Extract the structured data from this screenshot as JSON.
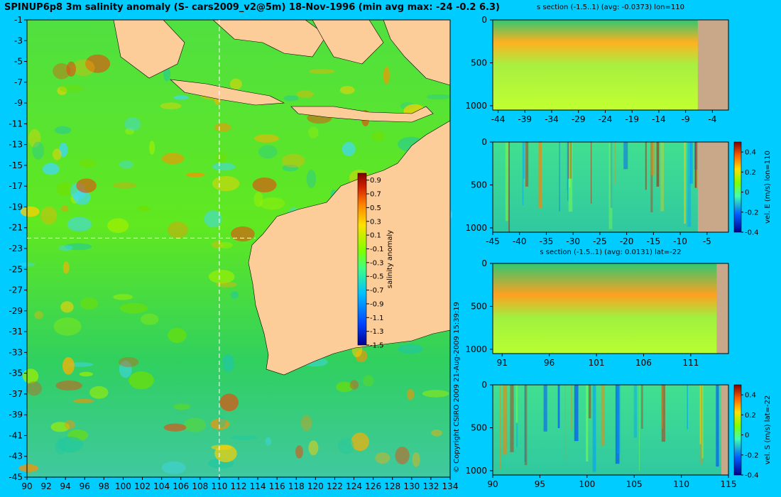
{
  "title": "SPINUP6p8 3m salinity anomaly (S- cars2009_v2@5m) 18-Nov-1996 (min avg max: -24 -0.2 6.3)",
  "copyright": "© Copyright CSIRO 2009   21-Aug-2009 15:39:19",
  "colors": {
    "background": "#00ccff",
    "land": "#fccc99",
    "section_land": "#c8a888"
  },
  "colormap": [
    "#00008f",
    "#0040ff",
    "#00c0ff",
    "#40ff80",
    "#80ff00",
    "#ffe000",
    "#ff8000",
    "#d02000",
    "#800000"
  ],
  "chart_data": [
    {
      "id": "map",
      "type": "heatmap",
      "title": "",
      "xlabel": "",
      "ylabel": "",
      "x_ticks": [
        "90",
        "92",
        "94",
        "96",
        "98",
        "100",
        "102",
        "104",
        "106",
        "108",
        "110",
        "112",
        "114",
        "116",
        "118",
        "120",
        "122",
        "124",
        "126",
        "128",
        "130",
        "132",
        "134"
      ],
      "y_ticks": [
        "-1",
        "-3",
        "-5",
        "-7",
        "-9",
        "-11",
        "-13",
        "-15",
        "-17",
        "-19",
        "-21",
        "-23",
        "-25",
        "-27",
        "-29",
        "-31",
        "-33",
        "-35",
        "-37",
        "-39",
        "-41",
        "-43",
        "-45"
      ],
      "xlim": [
        90,
        134
      ],
      "ylim": [
        -45,
        -1
      ],
      "crosshair": {
        "lon": 110,
        "lat": -22
      },
      "colorbar": {
        "label": "salinity anomaly",
        "ticks": [
          "0.9",
          "0.7",
          "0.5",
          "0.3",
          "0.1",
          "-0.1",
          "-0.3",
          "-0.5",
          "-0.7",
          "-0.9",
          "-1.1",
          "-1.3",
          "-1.5"
        ],
        "range": [
          -1.5,
          1.0
        ]
      }
    },
    {
      "id": "panel1",
      "type": "heatmap",
      "title": "s section (-1.5..1) (avg: -0.0373) lon=110",
      "x_ticks": [
        "-44",
        "-39",
        "-34",
        "-29",
        "-24",
        "-19",
        "-14",
        "-9",
        "-4"
      ],
      "y_ticks": [
        "0",
        "500",
        "1000"
      ],
      "xlim": [
        -45,
        -1
      ],
      "ylim": [
        1050,
        0
      ]
    },
    {
      "id": "panel2",
      "type": "heatmap",
      "title": "",
      "x_ticks": [
        "-45",
        "-40",
        "-35",
        "-30",
        "-25",
        "-20",
        "-15",
        "-10",
        "-5"
      ],
      "y_ticks": [
        "0",
        "500",
        "1000"
      ],
      "xlim": [
        -45,
        -1
      ],
      "ylim": [
        1050,
        0
      ],
      "colorbar": {
        "label": "vel. E (m/s) lon=110",
        "ticks": [
          "0.4",
          "0.2",
          "0",
          "-0.2",
          "-0.4"
        ],
        "range": [
          -0.4,
          0.5
        ]
      }
    },
    {
      "id": "panel3",
      "type": "heatmap",
      "title": "s section (-1.5..1) (avg: 0.0131) lat=-22",
      "x_ticks": [
        "91",
        "96",
        "101",
        "106",
        "111"
      ],
      "y_ticks": [
        "0",
        "500",
        "1000"
      ],
      "xlim": [
        90,
        115
      ],
      "ylim": [
        1050,
        0
      ]
    },
    {
      "id": "panel4",
      "type": "heatmap",
      "title": "",
      "x_ticks": [
        "90",
        "95",
        "100",
        "105",
        "110",
        "115"
      ],
      "y_ticks": [
        "0",
        "500",
        "1000"
      ],
      "xlim": [
        90,
        115
      ],
      "ylim": [
        1050,
        0
      ],
      "colorbar": {
        "label": "vel. S (m/s) lat=-22",
        "ticks": [
          "0.4",
          "0.2",
          "0",
          "-0.2",
          "-0.4"
        ],
        "range": [
          -0.4,
          0.5
        ]
      }
    }
  ]
}
